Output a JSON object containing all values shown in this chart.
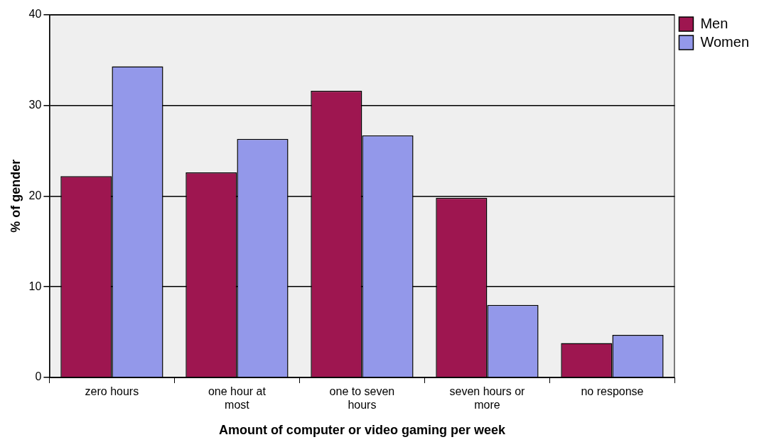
{
  "chart_data": {
    "type": "bar",
    "xlabel": "Amount of computer or video gaming per week",
    "ylabel": "% of gender",
    "categories": [
      "zero hours",
      "one hour at most",
      "one to seven hours",
      "seven hours or more",
      "no response"
    ],
    "series": [
      {
        "name": "Men",
        "color": "#9e1650",
        "values": [
          22.2,
          22.6,
          31.6,
          19.8,
          3.8
        ]
      },
      {
        "name": "Women",
        "color": "#9398ea",
        "values": [
          34.3,
          26.3,
          26.7,
          8.0,
          4.7
        ]
      }
    ],
    "ylim": [
      0,
      40
    ],
    "yticks": [
      0,
      10,
      20,
      30,
      40
    ],
    "grid": "y",
    "legend": "top right"
  }
}
